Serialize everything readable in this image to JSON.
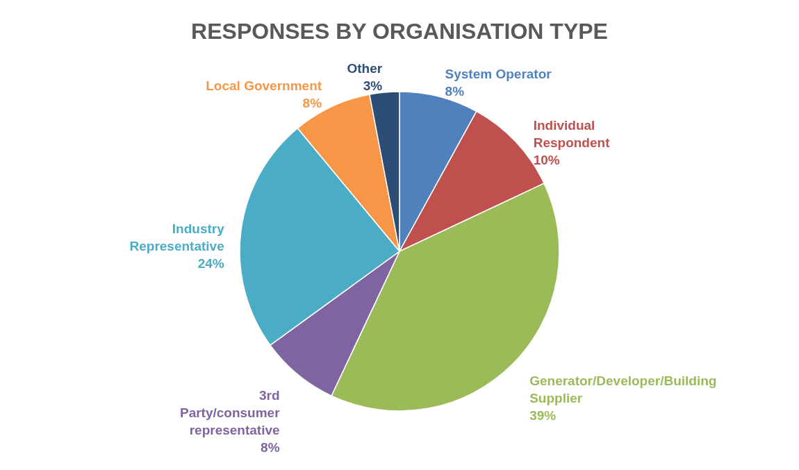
{
  "chart_data": {
    "type": "pie",
    "title": "RESPONSES BY ORGANISATION TYPE",
    "categories": [
      "System Operator",
      "Individual Respondent",
      "Generator/Developer/Building Supplier",
      "3rd Party/consumer representative",
      "Industry Representative",
      "Local Government",
      "Other"
    ],
    "values": [
      8,
      10,
      39,
      8,
      24,
      8,
      3
    ],
    "value_labels": [
      "8%",
      "10%",
      "39%",
      "8%",
      "24%",
      "8%",
      "3%"
    ],
    "colors": [
      "#4f81bd",
      "#c0504d",
      "#9bbb59",
      "#8064a2",
      "#4bacc6",
      "#f79646",
      "#2c4d75"
    ],
    "legend": false
  }
}
